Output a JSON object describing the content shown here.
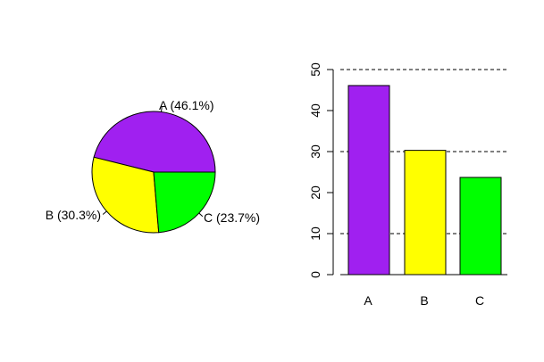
{
  "chart_data": [
    {
      "type": "pie",
      "categories": [
        "A",
        "B",
        "C"
      ],
      "values": [
        46.1,
        30.3,
        23.7
      ],
      "labels": [
        "A (46.1%)",
        "B (30.3%)",
        "C (23.7%)"
      ],
      "colors": [
        "#A020F0",
        "#FFFF00",
        "#00FF00"
      ]
    },
    {
      "type": "bar",
      "categories": [
        "A",
        "B",
        "C"
      ],
      "values": [
        46.1,
        30.3,
        23.7
      ],
      "colors": [
        "#A020F0",
        "#FFFF00",
        "#00FF00"
      ],
      "ylim": [
        0,
        50
      ],
      "yticks": [
        "0",
        "10",
        "20",
        "30",
        "40",
        "50"
      ],
      "gridlines": [
        10,
        30,
        50
      ],
      "grid_style": "dashed"
    }
  ]
}
